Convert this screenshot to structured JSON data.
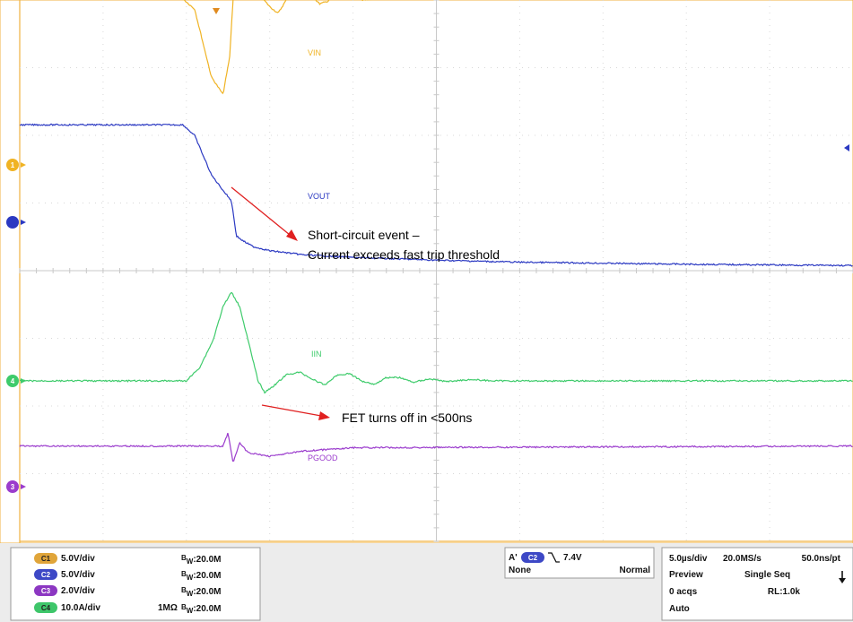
{
  "chart_data": {
    "type": "line",
    "title": "",
    "xlabel": "",
    "ylabel": "",
    "x_unit": "µs",
    "xlim": [
      0,
      50
    ],
    "grid": true,
    "series": [
      {
        "name": "VIN",
        "color": "#f0b323",
        "channel_badge": "C1",
        "reference_marker": "1",
        "points": [
          [
            0,
            12.6
          ],
          [
            9.5,
            12.6
          ],
          [
            10.5,
            11.5
          ],
          [
            11.5,
            6.5
          ],
          [
            12.2,
            5.2
          ],
          [
            12.6,
            8
          ],
          [
            13.0,
            16.5
          ],
          [
            13.5,
            14.5
          ],
          [
            14,
            13.3
          ],
          [
            14.5,
            12.4
          ],
          [
            15,
            11.7
          ],
          [
            15.5,
            11.2
          ],
          [
            16,
            12.2
          ],
          [
            16.5,
            13.4
          ],
          [
            17,
            13.3
          ],
          [
            17.5,
            12.5
          ],
          [
            18,
            11.9
          ],
          [
            18.5,
            12.1
          ],
          [
            19,
            12.9
          ],
          [
            19.5,
            13.0
          ],
          [
            20,
            12.6
          ],
          [
            20.5,
            12.2
          ],
          [
            21,
            12.2
          ],
          [
            21.5,
            12.7
          ],
          [
            22,
            12.8
          ],
          [
            23,
            12.5
          ],
          [
            24,
            12.7
          ],
          [
            25,
            12.6
          ],
          [
            50,
            12.6
          ]
        ]
      },
      {
        "name": "VOUT",
        "color": "#2b39c2",
        "channel_badge": "C2",
        "reference_marker": "",
        "points": [
          [
            0,
            7.2
          ],
          [
            9.8,
            7.2
          ],
          [
            10.5,
            6.4
          ],
          [
            11.5,
            3.5
          ],
          [
            12.3,
            2.2
          ],
          [
            12.7,
            1.6
          ],
          [
            13.0,
            -1.0
          ],
          [
            13.3,
            -1.3
          ],
          [
            14,
            -1.8
          ],
          [
            15,
            -2.1
          ],
          [
            17,
            -2.4
          ],
          [
            20,
            -2.6
          ],
          [
            25,
            -2.8
          ],
          [
            30,
            -2.95
          ],
          [
            40,
            -3.1
          ],
          [
            50,
            -3.2
          ]
        ]
      },
      {
        "name": "IIN",
        "color": "#3ecb6b",
        "channel_badge": "C4",
        "reference_marker": "4",
        "points": [
          [
            0,
            0
          ],
          [
            10,
            0
          ],
          [
            10.8,
            2
          ],
          [
            11.6,
            6
          ],
          [
            12.2,
            11
          ],
          [
            12.7,
            13.1
          ],
          [
            13.2,
            11
          ],
          [
            13.8,
            5
          ],
          [
            14.3,
            0
          ],
          [
            14.7,
            -1.7
          ],
          [
            15.3,
            -0.6
          ],
          [
            16,
            0.9
          ],
          [
            16.8,
            1.3
          ],
          [
            17.6,
            0.2
          ],
          [
            18.3,
            -0.6
          ],
          [
            19,
            0.8
          ],
          [
            19.8,
            1.1
          ],
          [
            20.5,
            0
          ],
          [
            21.3,
            -0.5
          ],
          [
            22,
            0.5
          ],
          [
            22.8,
            0.5
          ],
          [
            23.6,
            -0.2
          ],
          [
            24.6,
            0.3
          ],
          [
            25.6,
            -0.1
          ],
          [
            27,
            0.2
          ],
          [
            28.5,
            0
          ],
          [
            50,
            0
          ]
        ]
      },
      {
        "name": "PGOOD",
        "color": "#9b3ccd",
        "channel_badge": "C3",
        "reference_marker": "3",
        "points": [
          [
            0,
            1.2
          ],
          [
            12.2,
            1.2
          ],
          [
            12.5,
            1.6
          ],
          [
            12.8,
            0.7
          ],
          [
            13.2,
            1.3
          ],
          [
            13.7,
            1.0
          ],
          [
            15,
            0.9
          ],
          [
            17,
            1.05
          ],
          [
            20,
            1.15
          ],
          [
            50,
            1.2
          ]
        ]
      }
    ],
    "annotations": [
      {
        "text": "Short-circuit event –",
        "arrow_from": "VOUT"
      },
      {
        "text": "Current exceeds fast trip threshold"
      },
      {
        "text": "FET turns off in <500ns",
        "arrow_from": "IIN"
      }
    ]
  },
  "status_bar": {
    "channels": [
      {
        "badge": "C1",
        "color": "#e0a53a",
        "scale": "5.0V/div",
        "coupling": "",
        "bw_prefix": "B",
        "bw_sub": "W",
        "bw_value": ":20.0M"
      },
      {
        "badge": "C2",
        "color": "#3d48c6",
        "scale": "5.0V/div",
        "coupling": "",
        "bw_prefix": "B",
        "bw_sub": "W",
        "bw_value": ":20.0M"
      },
      {
        "badge": "C3",
        "color": "#8c37c2",
        "scale": "2.0V/div",
        "coupling": "",
        "bw_prefix": "B",
        "bw_sub": "W",
        "bw_value": ":20.0M"
      },
      {
        "badge": "C4",
        "color": "#3ec66a",
        "scale": "10.0A/div",
        "coupling": "1MΩ",
        "bw_prefix": "B",
        "bw_sub": "W",
        "bw_value": ":20.0M"
      }
    ],
    "trigger": {
      "label": "A'",
      "channel": "C2",
      "level": "7.4V",
      "mode1": "None",
      "mode2": "Normal"
    },
    "horizontal": {
      "time_div": "5.0µs/div",
      "sample_rate": "20.0MS/s",
      "resolution": "50.0ns/pt",
      "state": "Preview",
      "acq_mode": "Single Seq",
      "acqs": "0 acqs",
      "record_length": "RL:1.0k",
      "trigger_mode": "Auto"
    }
  }
}
